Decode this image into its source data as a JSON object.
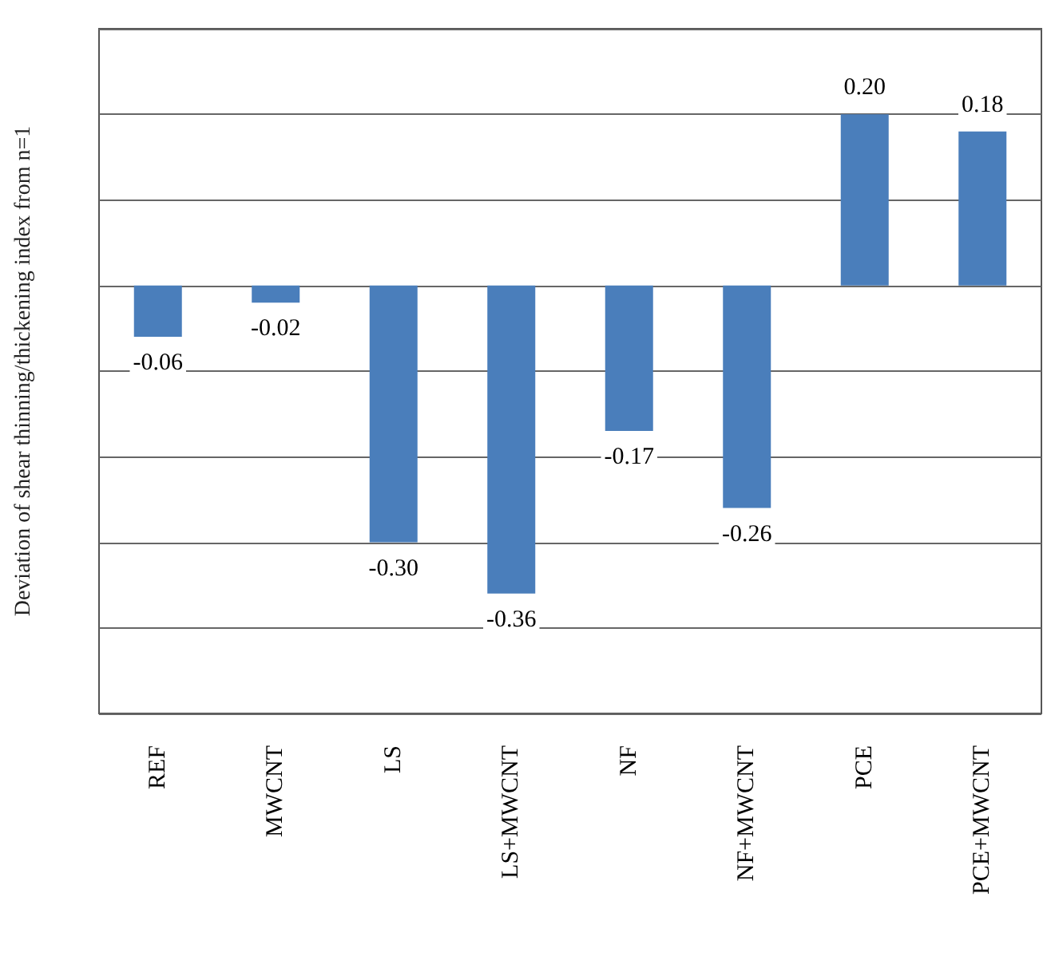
{
  "chart_data": {
    "type": "bar",
    "ylabel": "Deviation of shear thinning/thickening index from n=1",
    "categories": [
      "REF",
      "MWCNT",
      "LS",
      "LS+MWCNT",
      "NF",
      "NF+MWCNT",
      "PCE",
      "PCE+MWCNT"
    ],
    "values": [
      -0.06,
      -0.02,
      -0.3,
      -0.36,
      -0.17,
      -0.26,
      0.2,
      0.18
    ],
    "value_labels": [
      "-0.06",
      "-0.02",
      "-0.30",
      "-0.36",
      "-0.17",
      "-0.26",
      "0.20",
      "0.18"
    ],
    "color": "#4a7ebb",
    "ylim": [
      -0.5,
      0.3
    ],
    "yticks": [
      {
        "value": -0.5,
        "label": null
      },
      {
        "value": -0.4,
        "label": null
      },
      {
        "value": -0.3,
        "label": null
      },
      {
        "value": -0.2,
        "label": null
      },
      {
        "value": -0.1,
        "label": null
      },
      {
        "value": 0,
        "label": null
      },
      {
        "value": 0.1,
        "label": null
      },
      {
        "value": 0.2,
        "label": null
      },
      {
        "value": 0.3,
        "label": null
      }
    ],
    "grid": "y",
    "tick_labels": "x"
  }
}
